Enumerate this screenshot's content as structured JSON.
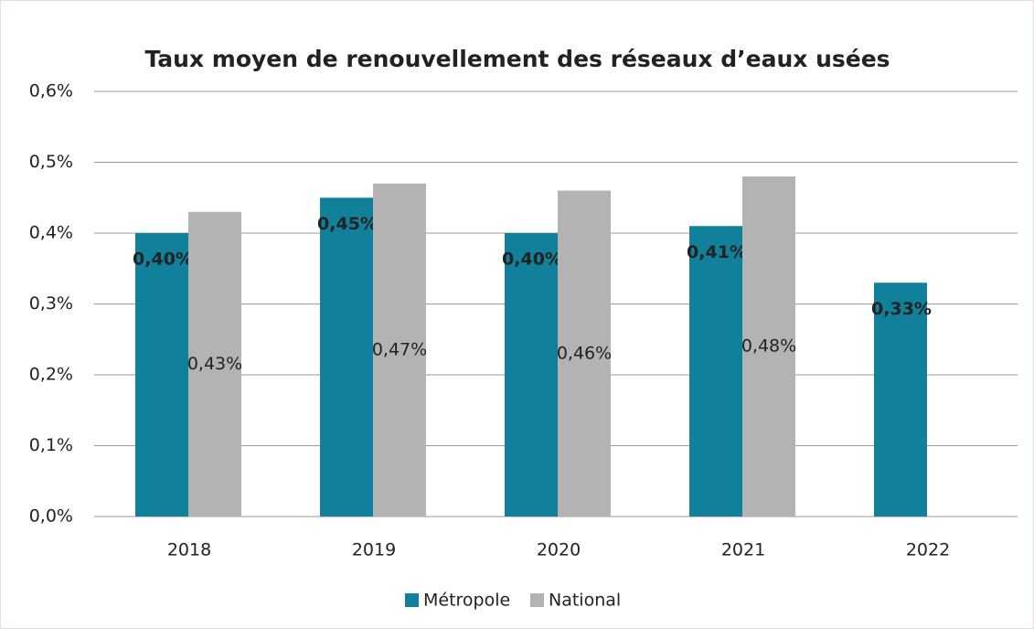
{
  "chart_data": {
    "type": "bar",
    "title": "Taux moyen de renouvellement des réseaux d’eaux usées",
    "categories": [
      "2018",
      "2019",
      "2020",
      "2021",
      "2022"
    ],
    "series": [
      {
        "name": "Métropole",
        "color": "#11809b",
        "values": [
          0.4,
          0.45,
          0.4,
          0.41,
          0.33
        ],
        "value_labels": [
          "0,40%",
          "0,45%",
          "0,40%",
          "0,41%",
          "0,33%"
        ]
      },
      {
        "name": "National",
        "color": "#b3b3b3",
        "values": [
          0.43,
          0.47,
          0.46,
          0.48,
          null
        ],
        "value_labels": [
          "0,43%",
          "0,47%",
          "0,46%",
          "0,48%",
          null
        ]
      }
    ],
    "ylim": [
      0,
      0.6
    ],
    "yticks": [
      {
        "value": 0,
        "label": "0,0%"
      },
      {
        "value": 0.1,
        "label": "0,1%"
      },
      {
        "value": 0.2,
        "label": "0,2%"
      },
      {
        "value": 0.3,
        "label": "0,3%"
      },
      {
        "value": 0.4,
        "label": "0,4%"
      },
      {
        "value": 0.5,
        "label": "0,5%"
      },
      {
        "value": 0.6,
        "label": "0,6%"
      }
    ],
    "grid": true,
    "legend": "bottom"
  }
}
